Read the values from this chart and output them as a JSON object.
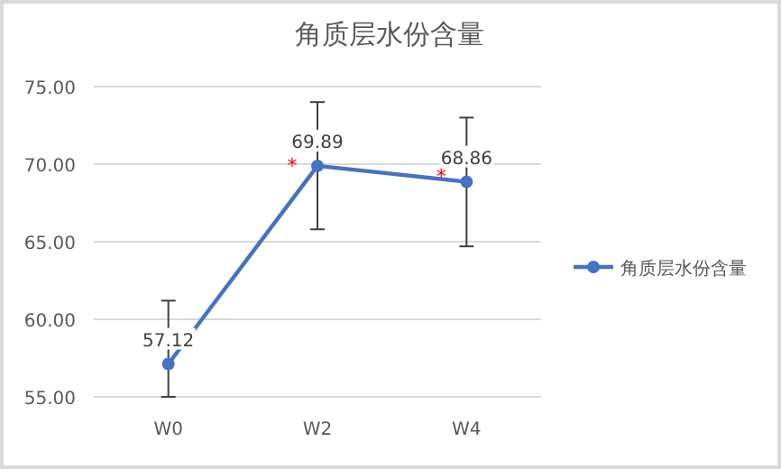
{
  "chart_data": {
    "type": "line",
    "title": "角质层水份含量",
    "categories": [
      "W0",
      "W2",
      "W4"
    ],
    "series": [
      {
        "name": "角质层水份含量",
        "color": "#4472c4",
        "values": [
          57.12,
          69.89,
          68.86
        ],
        "errors": [
          [
            55.0,
            61.2
          ],
          [
            65.8,
            74.0
          ],
          [
            64.7,
            73.0
          ]
        ]
      }
    ],
    "ylim": [
      55,
      75
    ],
    "yticks": [
      {
        "value": 55,
        "label": "55.00"
      },
      {
        "value": 60,
        "label": "60.00"
      },
      {
        "value": 65,
        "label": "65.00"
      },
      {
        "value": 70,
        "label": "70.00"
      },
      {
        "value": 75,
        "label": "75.00"
      }
    ],
    "grid": "y",
    "legend": "right",
    "marker": "circle",
    "line_style": "solid",
    "data_labels": true,
    "annotations": [
      {
        "text": "*",
        "x": "W2",
        "y": 70.2
      },
      {
        "text": "*",
        "x": "W4",
        "y": 69.5
      }
    ]
  }
}
